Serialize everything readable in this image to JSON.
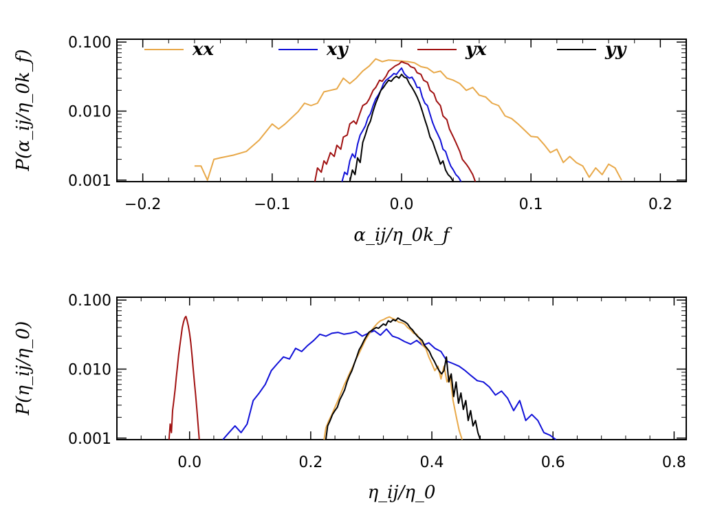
{
  "chart_data": [
    {
      "type": "line",
      "yscale": "log",
      "xlabel": "α_ij/η_0k_f",
      "ylabel": "P(α_ij/η_0k_f)",
      "xlim": [
        -0.22,
        0.22
      ],
      "ylim": [
        0.00095,
        0.11
      ],
      "xticks": [
        -0.2,
        -0.1,
        0.0,
        0.1,
        0.2
      ],
      "xtick_labels": [
        "−0.2",
        "−0.1",
        "0.0",
        "0.1",
        "0.2"
      ],
      "yticks": [
        0.001,
        0.01,
        0.1
      ],
      "ytick_labels": [
        "0.001",
        "0.010",
        "0.100"
      ],
      "legend": [
        {
          "name": "xx",
          "color": "#E8A848"
        },
        {
          "name": "xy",
          "color": "#1010D8"
        },
        {
          "name": "yx",
          "color": "#A01010"
        },
        {
          "name": "yy",
          "color": "#000000"
        }
      ],
      "series": [
        {
          "name": "xx",
          "color": "#E8A848",
          "x": [
            -0.16,
            -0.155,
            -0.15,
            -0.145,
            -0.14,
            -0.13,
            -0.12,
            -0.11,
            -0.1,
            -0.095,
            -0.09,
            -0.08,
            -0.075,
            -0.07,
            -0.065,
            -0.06,
            -0.055,
            -0.05,
            -0.045,
            -0.04,
            -0.035,
            -0.03,
            -0.025,
            -0.02,
            -0.015,
            -0.01,
            -0.005,
            0.0,
            0.005,
            0.01,
            0.015,
            0.02,
            0.025,
            0.03,
            0.035,
            0.04,
            0.045,
            0.05,
            0.055,
            0.06,
            0.065,
            0.07,
            0.075,
            0.08,
            0.085,
            0.09,
            0.095,
            0.1,
            0.105,
            0.11,
            0.115,
            0.12,
            0.125,
            0.13,
            0.135,
            0.14,
            0.145,
            0.15,
            0.155,
            0.16,
            0.165,
            0.17
          ],
          "y": [
            0.0016,
            0.0016,
            0.001,
            0.002,
            0.0021,
            0.0023,
            0.0026,
            0.0038,
            0.0065,
            0.0055,
            0.0065,
            0.0098,
            0.013,
            0.012,
            0.013,
            0.019,
            0.02,
            0.021,
            0.03,
            0.025,
            0.03,
            0.038,
            0.045,
            0.057,
            0.052,
            0.055,
            0.054,
            0.053,
            0.052,
            0.05,
            0.044,
            0.042,
            0.036,
            0.038,
            0.03,
            0.028,
            0.025,
            0.02,
            0.022,
            0.017,
            0.016,
            0.013,
            0.012,
            0.0085,
            0.0078,
            0.0065,
            0.0053,
            0.0043,
            0.0042,
            0.0033,
            0.0025,
            0.0028,
            0.0018,
            0.0022,
            0.0018,
            0.0016,
            0.0011,
            0.0015,
            0.0012,
            0.0017,
            0.0015,
            0.001
          ]
        },
        {
          "name": "yx",
          "color": "#A01010",
          "x": [
            -0.067,
            -0.065,
            -0.062,
            -0.06,
            -0.058,
            -0.055,
            -0.052,
            -0.05,
            -0.047,
            -0.045,
            -0.042,
            -0.04,
            -0.037,
            -0.035,
            -0.032,
            -0.03,
            -0.027,
            -0.025,
            -0.022,
            -0.02,
            -0.017,
            -0.015,
            -0.012,
            -0.01,
            -0.007,
            -0.005,
            -0.002,
            0.0,
            0.002,
            0.005,
            0.007,
            0.01,
            0.012,
            0.015,
            0.017,
            0.02,
            0.022,
            0.025,
            0.027,
            0.03,
            0.032,
            0.035,
            0.037,
            0.04,
            0.042,
            0.045,
            0.047,
            0.05,
            0.052,
            0.055,
            0.057
          ],
          "y": [
            0.00095,
            0.0015,
            0.0013,
            0.0019,
            0.0017,
            0.0025,
            0.0022,
            0.0032,
            0.0028,
            0.0042,
            0.0045,
            0.0065,
            0.0072,
            0.0065,
            0.0095,
            0.012,
            0.013,
            0.015,
            0.02,
            0.022,
            0.028,
            0.027,
            0.032,
            0.038,
            0.042,
            0.045,
            0.048,
            0.052,
            0.05,
            0.048,
            0.044,
            0.042,
            0.036,
            0.034,
            0.028,
            0.026,
            0.02,
            0.018,
            0.014,
            0.012,
            0.0085,
            0.0075,
            0.0055,
            0.0042,
            0.0035,
            0.0026,
            0.002,
            0.0017,
            0.0015,
            0.0012,
            0.00095
          ]
        },
        {
          "name": "xy",
          "color": "#1010D8",
          "x": [
            -0.046,
            -0.044,
            -0.042,
            -0.04,
            -0.038,
            -0.036,
            -0.034,
            -0.032,
            -0.03,
            -0.028,
            -0.026,
            -0.024,
            -0.022,
            -0.02,
            -0.018,
            -0.016,
            -0.014,
            -0.012,
            -0.01,
            -0.008,
            -0.006,
            -0.004,
            -0.002,
            0.0,
            0.002,
            0.004,
            0.006,
            0.008,
            0.01,
            0.012,
            0.014,
            0.016,
            0.018,
            0.02,
            0.022,
            0.024,
            0.026,
            0.028,
            0.03,
            0.032,
            0.034,
            0.036,
            0.038,
            0.04,
            0.042,
            0.044,
            0.046
          ],
          "y": [
            0.00095,
            0.0013,
            0.0012,
            0.0019,
            0.0024,
            0.0021,
            0.0033,
            0.0045,
            0.0052,
            0.0061,
            0.008,
            0.0092,
            0.012,
            0.015,
            0.017,
            0.02,
            0.025,
            0.028,
            0.03,
            0.032,
            0.035,
            0.034,
            0.038,
            0.042,
            0.035,
            0.032,
            0.03,
            0.031,
            0.027,
            0.022,
            0.022,
            0.016,
            0.013,
            0.012,
            0.009,
            0.0068,
            0.0055,
            0.0046,
            0.0038,
            0.0028,
            0.0026,
            0.002,
            0.0016,
            0.0014,
            0.0012,
            0.0011,
            0.00095
          ]
        },
        {
          "name": "yy",
          "color": "#000000",
          "x": [
            -0.04,
            -0.038,
            -0.036,
            -0.034,
            -0.032,
            -0.03,
            -0.028,
            -0.026,
            -0.024,
            -0.022,
            -0.02,
            -0.018,
            -0.016,
            -0.014,
            -0.012,
            -0.01,
            -0.008,
            -0.006,
            -0.004,
            -0.002,
            0.0,
            0.002,
            0.004,
            0.006,
            0.008,
            0.01,
            0.012,
            0.014,
            0.016,
            0.018,
            0.02,
            0.022,
            0.024,
            0.026,
            0.028,
            0.03,
            0.032,
            0.034,
            0.036,
            0.038,
            0.04
          ],
          "y": [
            0.00095,
            0.0014,
            0.0012,
            0.0021,
            0.0018,
            0.0035,
            0.0045,
            0.006,
            0.0072,
            0.01,
            0.013,
            0.016,
            0.02,
            0.022,
            0.025,
            0.028,
            0.027,
            0.03,
            0.032,
            0.03,
            0.034,
            0.031,
            0.03,
            0.025,
            0.022,
            0.019,
            0.016,
            0.013,
            0.01,
            0.0075,
            0.0058,
            0.0042,
            0.0036,
            0.0028,
            0.0022,
            0.0017,
            0.0019,
            0.0014,
            0.0012,
            0.0011,
            0.00095
          ]
        }
      ]
    },
    {
      "type": "line",
      "yscale": "log",
      "xlabel": "η_ij/η_0",
      "ylabel": "P(η_ij/η_0)",
      "xlim": [
        -0.12,
        0.82
      ],
      "ylim": [
        0.00095,
        0.11
      ],
      "xticks": [
        0.0,
        0.2,
        0.4,
        0.6,
        0.8
      ],
      "xtick_labels": [
        "0.0",
        "0.2",
        "0.4",
        "0.6",
        "0.8"
      ],
      "yticks": [
        0.001,
        0.01,
        0.1
      ],
      "ytick_labels": [
        "0.001",
        "0.010",
        "0.100"
      ],
      "series": [
        {
          "name": "yx",
          "color": "#A01010",
          "x": [
            -0.034,
            -0.032,
            -0.03,
            -0.028,
            -0.026,
            -0.024,
            -0.022,
            -0.02,
            -0.018,
            -0.016,
            -0.014,
            -0.012,
            -0.01,
            -0.008,
            -0.006,
            -0.004,
            -0.002,
            0.0,
            0.002,
            0.004,
            0.006,
            0.008,
            0.01,
            0.012,
            0.014,
            0.016
          ],
          "y": [
            0.00095,
            0.0016,
            0.0012,
            0.0025,
            0.0035,
            0.005,
            0.0075,
            0.011,
            0.016,
            0.022,
            0.03,
            0.04,
            0.048,
            0.055,
            0.058,
            0.05,
            0.042,
            0.033,
            0.024,
            0.016,
            0.01,
            0.0065,
            0.0042,
            0.0026,
            0.0016,
            0.00095
          ]
        },
        {
          "name": "xy",
          "color": "#1010D8",
          "x": [
            0.055,
            0.065,
            0.075,
            0.085,
            0.095,
            0.105,
            0.115,
            0.125,
            0.135,
            0.145,
            0.155,
            0.165,
            0.175,
            0.185,
            0.195,
            0.205,
            0.215,
            0.225,
            0.235,
            0.245,
            0.255,
            0.265,
            0.275,
            0.285,
            0.295,
            0.305,
            0.315,
            0.325,
            0.335,
            0.345,
            0.355,
            0.365,
            0.375,
            0.385,
            0.395,
            0.405,
            0.415,
            0.425,
            0.435,
            0.445,
            0.455,
            0.465,
            0.475,
            0.485,
            0.495,
            0.505,
            0.515,
            0.525,
            0.535,
            0.545,
            0.555,
            0.565,
            0.575,
            0.585,
            0.595,
            0.605
          ],
          "y": [
            0.00095,
            0.0012,
            0.0015,
            0.0012,
            0.0016,
            0.0035,
            0.0045,
            0.006,
            0.0095,
            0.012,
            0.015,
            0.014,
            0.02,
            0.018,
            0.022,
            0.026,
            0.032,
            0.03,
            0.033,
            0.034,
            0.032,
            0.033,
            0.035,
            0.03,
            0.033,
            0.036,
            0.031,
            0.038,
            0.03,
            0.028,
            0.025,
            0.023,
            0.026,
            0.022,
            0.024,
            0.02,
            0.018,
            0.013,
            0.012,
            0.011,
            0.0095,
            0.008,
            0.0068,
            0.0065,
            0.0055,
            0.0042,
            0.0048,
            0.0038,
            0.0025,
            0.0035,
            0.0018,
            0.0022,
            0.0018,
            0.0012,
            0.0011,
            0.00095
          ]
        },
        {
          "name": "xx",
          "color": "#E8A848",
          "x": [
            0.222,
            0.225,
            0.23,
            0.235,
            0.24,
            0.245,
            0.25,
            0.255,
            0.26,
            0.265,
            0.27,
            0.275,
            0.28,
            0.285,
            0.29,
            0.295,
            0.3,
            0.305,
            0.31,
            0.315,
            0.32,
            0.325,
            0.33,
            0.335,
            0.34,
            0.345,
            0.35,
            0.355,
            0.36,
            0.365,
            0.37,
            0.375,
            0.38,
            0.385,
            0.39,
            0.395,
            0.4,
            0.405,
            0.41,
            0.415,
            0.42,
            0.425,
            0.43,
            0.435,
            0.44,
            0.445,
            0.45
          ],
          "y": [
            0.00095,
            0.0014,
            0.0018,
            0.0022,
            0.0028,
            0.0035,
            0.0045,
            0.0058,
            0.0072,
            0.009,
            0.011,
            0.014,
            0.017,
            0.021,
            0.026,
            0.031,
            0.036,
            0.041,
            0.046,
            0.05,
            0.052,
            0.055,
            0.057,
            0.054,
            0.052,
            0.048,
            0.047,
            0.045,
            0.04,
            0.037,
            0.033,
            0.032,
            0.027,
            0.022,
            0.02,
            0.015,
            0.012,
            0.0095,
            0.011,
            0.0072,
            0.011,
            0.0065,
            0.008,
            0.0035,
            0.0021,
            0.0013,
            0.00095
          ]
        },
        {
          "name": "yy",
          "color": "#000000",
          "x": [
            0.225,
            0.228,
            0.232,
            0.236,
            0.24,
            0.244,
            0.248,
            0.252,
            0.256,
            0.26,
            0.264,
            0.268,
            0.272,
            0.276,
            0.28,
            0.284,
            0.288,
            0.292,
            0.296,
            0.3,
            0.304,
            0.308,
            0.312,
            0.316,
            0.32,
            0.324,
            0.328,
            0.332,
            0.336,
            0.34,
            0.344,
            0.348,
            0.352,
            0.356,
            0.36,
            0.364,
            0.368,
            0.372,
            0.376,
            0.38,
            0.384,
            0.388,
            0.392,
            0.396,
            0.4,
            0.404,
            0.408,
            0.412,
            0.416,
            0.42,
            0.424,
            0.428,
            0.432,
            0.436,
            0.44,
            0.444,
            0.448,
            0.452,
            0.456,
            0.46,
            0.464,
            0.468,
            0.472,
            0.476,
            0.48
          ],
          "y": [
            0.00095,
            0.0015,
            0.0018,
            0.0022,
            0.0025,
            0.0028,
            0.0036,
            0.0042,
            0.005,
            0.0065,
            0.008,
            0.0095,
            0.012,
            0.015,
            0.019,
            0.022,
            0.026,
            0.03,
            0.034,
            0.036,
            0.038,
            0.04,
            0.039,
            0.042,
            0.045,
            0.043,
            0.05,
            0.048,
            0.052,
            0.05,
            0.055,
            0.052,
            0.05,
            0.048,
            0.045,
            0.04,
            0.037,
            0.033,
            0.03,
            0.028,
            0.026,
            0.022,
            0.02,
            0.018,
            0.015,
            0.013,
            0.011,
            0.0095,
            0.0085,
            0.0095,
            0.015,
            0.0065,
            0.0085,
            0.004,
            0.0065,
            0.0032,
            0.0045,
            0.0026,
            0.0035,
            0.0018,
            0.0025,
            0.0015,
            0.0018,
            0.0012,
            0.00095
          ]
        }
      ]
    }
  ]
}
